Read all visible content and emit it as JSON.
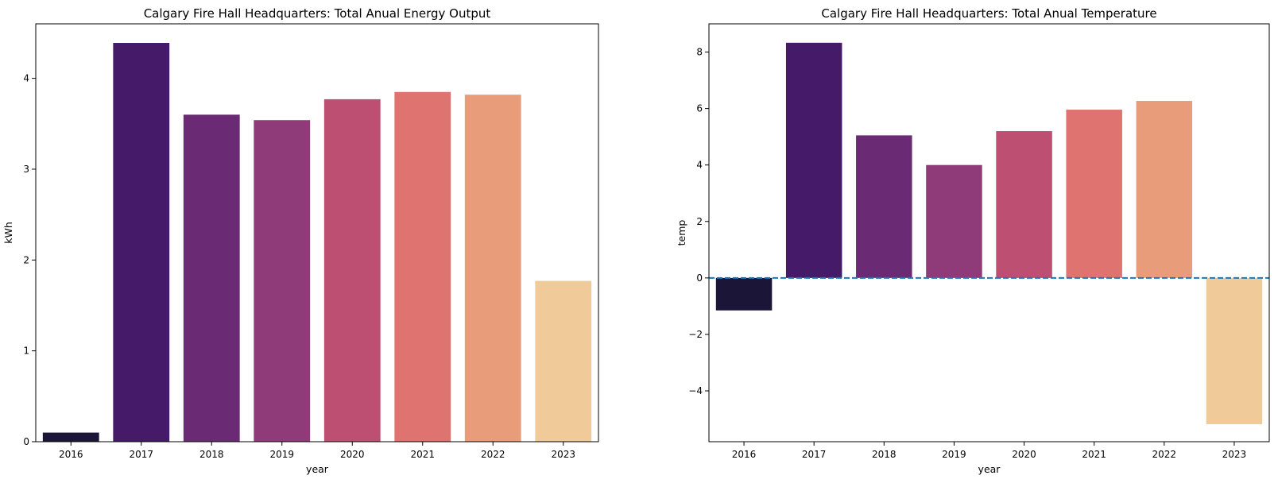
{
  "chart_data": [
    {
      "type": "bar",
      "title": "Calgary Fire Hall Headquarters: Total Anual Energy Output",
      "xlabel": "year",
      "ylabel": "kWh",
      "categories": [
        "2016",
        "2017",
        "2018",
        "2019",
        "2020",
        "2021",
        "2022",
        "2023"
      ],
      "values": [
        0.1,
        4.39,
        3.6,
        3.54,
        3.77,
        3.85,
        3.82,
        1.77
      ],
      "ylim": [
        0,
        4.6
      ],
      "yticks": [
        0,
        1,
        2,
        3,
        4
      ],
      "ytick_labels": [
        "0",
        "1",
        "2",
        "3",
        "4"
      ],
      "grid": false,
      "colors": [
        "#1b1537",
        "#451a69",
        "#6b2b74",
        "#903b79",
        "#bc4f72",
        "#df736f",
        "#e99c7a",
        "#f0ca99"
      ]
    },
    {
      "type": "bar",
      "title": "Calgary Fire Hall Headquarters: Total Anual Temperature",
      "xlabel": "year",
      "ylabel": "temp",
      "categories": [
        "2016",
        "2017",
        "2018",
        "2019",
        "2020",
        "2021",
        "2022",
        "2023"
      ],
      "values": [
        -1.15,
        8.33,
        5.05,
        4.0,
        5.2,
        5.96,
        6.27,
        -5.18
      ],
      "ylim": [
        -5.8,
        9.0
      ],
      "yticks": [
        -4,
        -2,
        0,
        2,
        4,
        6,
        8
      ],
      "ytick_labels": [
        "−4",
        "−2",
        "0",
        "2",
        "4",
        "6",
        "8"
      ],
      "grid": false,
      "reference_line": {
        "y": 0,
        "style": "dashed",
        "color": "#1f77b4"
      },
      "colors": [
        "#1b1537",
        "#451a69",
        "#6b2b74",
        "#903b79",
        "#bc4f72",
        "#df736f",
        "#e99c7a",
        "#f0ca99"
      ]
    }
  ]
}
